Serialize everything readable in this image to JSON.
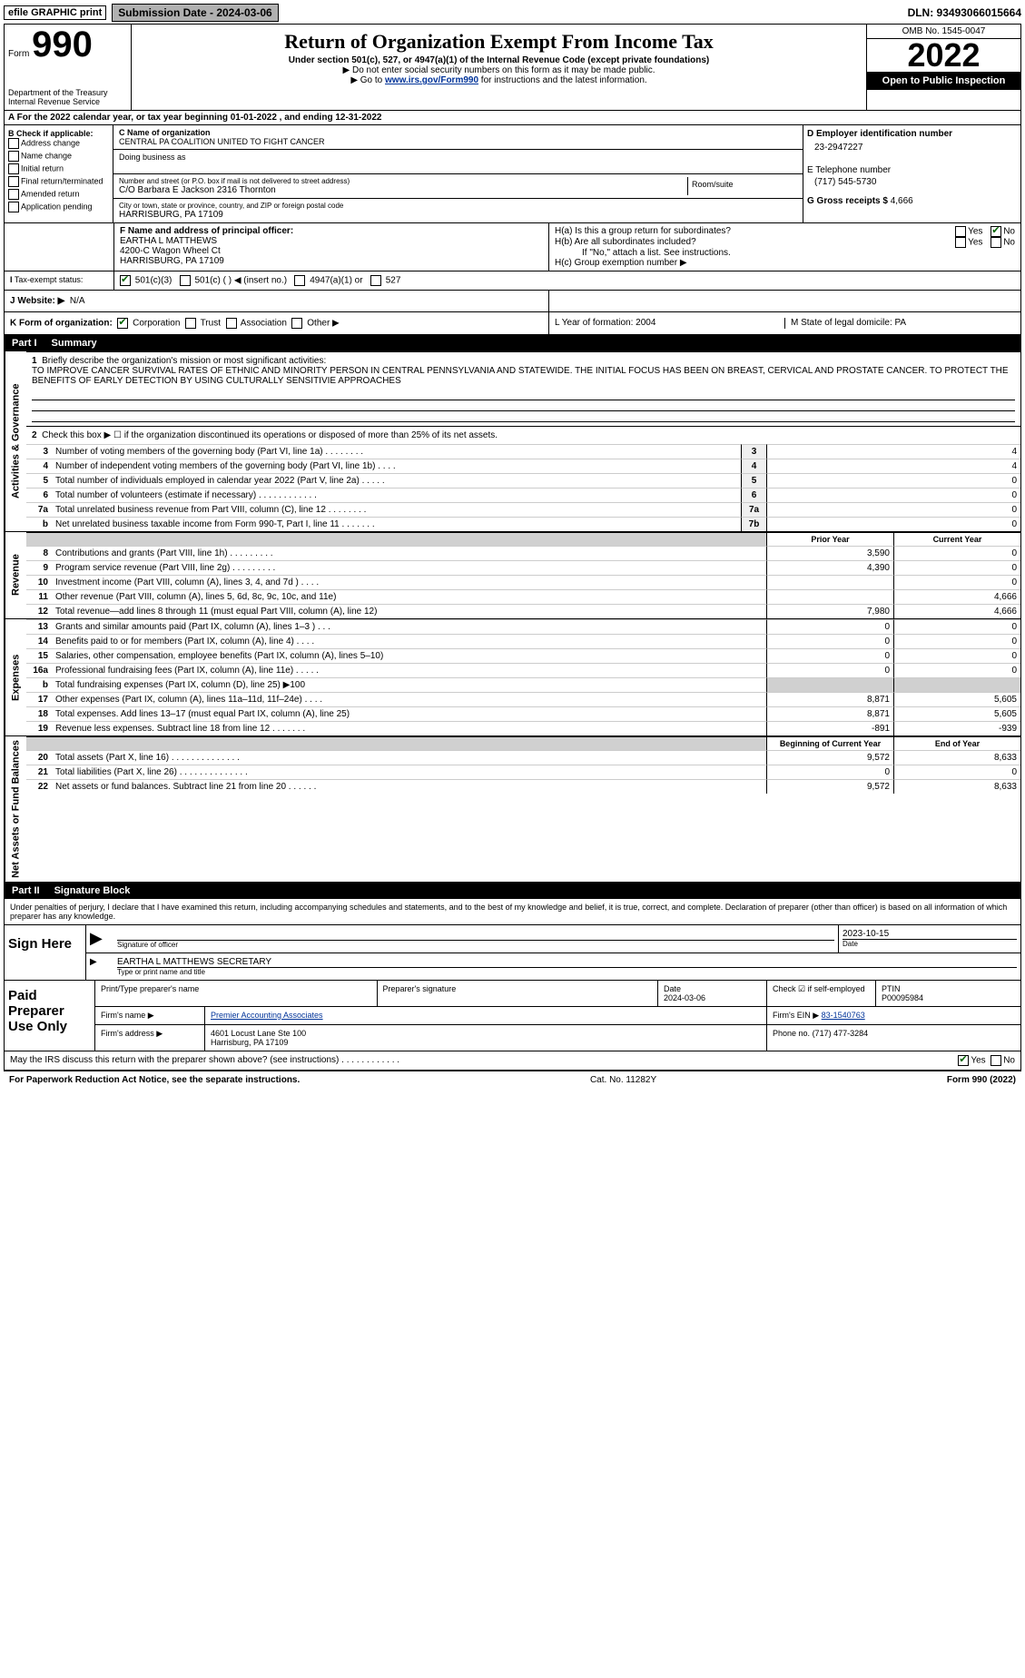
{
  "topbar": {
    "efile": "efile GRAPHIC print",
    "submission": "Submission Date - 2024-03-06",
    "dln": "DLN: 93493066015664"
  },
  "header": {
    "form_prefix": "Form",
    "form_number": "990",
    "dept": "Department of the Treasury Internal Revenue Service",
    "title": "Return of Organization Exempt From Income Tax",
    "sub1": "Under section 501(c), 527, or 4947(a)(1) of the Internal Revenue Code (except private foundations)",
    "sub2": "▶ Do not enter social security numbers on this form as it may be made public.",
    "sub3_pre": "▶ Go to ",
    "sub3_link": "www.irs.gov/Form990",
    "sub3_post": " for instructions and the latest information.",
    "omb": "OMB No. 1545-0047",
    "year": "2022",
    "open": "Open to Public Inspection"
  },
  "period": "For the 2022 calendar year, or tax year beginning 01-01-2022     , and ending 12-31-2022",
  "boxB": {
    "title": "B Check if applicable:",
    "items": [
      "Address change",
      "Name change",
      "Initial return",
      "Final return/terminated",
      "Amended return",
      "Application pending"
    ]
  },
  "boxC": {
    "label_name": "C Name of organization",
    "name": "CENTRAL PA COALITION UNITED TO FIGHT CANCER",
    "dba_label": "Doing business as",
    "street_label": "Number and street (or P.O. box if mail is not delivered to street address)",
    "street": "C/O Barbara E Jackson 2316 Thornton",
    "room_label": "Room/suite",
    "city_label": "City or town, state or province, country, and ZIP or foreign postal code",
    "city": "HARRISBURG, PA   17109"
  },
  "boxD": {
    "label": "D Employer identification number",
    "ein": "23-2947227"
  },
  "boxE": {
    "label": "E Telephone number",
    "phone": "(717) 545-5730"
  },
  "boxG": {
    "label": "G Gross receipts $",
    "val": "4,666"
  },
  "boxF": {
    "label": "F  Name and address of principal officer:",
    "name": "EARTHA L MATTHEWS",
    "addr1": "4200-C Wagon Wheel Ct",
    "addr2": "HARRISBURG, PA   17109"
  },
  "boxH": {
    "a": "H(a)  Is this a group return for subordinates?",
    "b": "H(b)  Are all subordinates included?",
    "b_note": "If \"No,\" attach a list. See instructions.",
    "c": "H(c)  Group exemption number ▶"
  },
  "taxExempt": {
    "label": "Tax-exempt status:",
    "opts": [
      "501(c)(3)",
      "501(c) (  ) ◀ (insert no.)",
      "4947(a)(1) or",
      "527"
    ]
  },
  "website": {
    "label": "J Website: ▶",
    "val": "N/A"
  },
  "formOrg": {
    "k": "K Form of organization:",
    "opts": [
      "Corporation",
      "Trust",
      "Association",
      "Other ▶"
    ],
    "l": "L Year of formation: 2004",
    "m": "M State of legal domicile: PA"
  },
  "part1": {
    "pt": "Part I",
    "title": "Summary"
  },
  "gov": {
    "label": "Activities & Governance",
    "l1": "Briefly describe the organization's mission or most significant activities:",
    "mission": "TO IMPROVE CANCER SURVIVAL RATES OF ETHNIC AND MINORITY PERSON IN CENTRAL PENNSYLVANIA AND STATEWIDE. THE INITIAL FOCUS HAS BEEN ON BREAST, CERVICAL AND PROSTATE CANCER. TO PROTECT THE BENEFITS OF EARLY DETECTION BY USING CULTURALLY SENSITIVIE APPROACHES",
    "l2": "Check this box ▶ ☐  if the organization discontinued its operations or disposed of more than 25% of its net assets.",
    "rows": [
      {
        "n": "3",
        "t": "Number of voting members of the governing body (Part VI, line 1a)   .    .    .    .    .    .    .    .",
        "c": "3",
        "v": "4"
      },
      {
        "n": "4",
        "t": "Number of independent voting members of the governing body (Part VI, line 1b)   .    .    .    .",
        "c": "4",
        "v": "4"
      },
      {
        "n": "5",
        "t": "Total number of individuals employed in calendar year 2022 (Part V, line 2a)   .    .    .    .    .",
        "c": "5",
        "v": "0"
      },
      {
        "n": "6",
        "t": "Total number of volunteers (estimate if necessary)   .    .    .    .    .    .    .    .    .    .    .    .",
        "c": "6",
        "v": "0"
      },
      {
        "n": "7a",
        "t": "Total unrelated business revenue from Part VIII, column (C), line 12   .    .    .    .    .    .    .    .",
        "c": "7a",
        "v": "0"
      },
      {
        "n": "b",
        "t": "Net unrelated business taxable income from Form 990-T, Part I, line 11   .    .    .    .    .    .    .",
        "c": "7b",
        "v": "0"
      }
    ]
  },
  "colhdr": {
    "prior": "Prior Year",
    "curr": "Current Year"
  },
  "rev": {
    "label": "Revenue",
    "rows": [
      {
        "n": "8",
        "t": "Contributions and grants (Part VIII, line 1h)   .    .    .    .    .    .    .    .    .",
        "p": "3,590",
        "c": "0"
      },
      {
        "n": "9",
        "t": "Program service revenue (Part VIII, line 2g)   .    .    .    .    .    .    .    .    .",
        "p": "4,390",
        "c": "0"
      },
      {
        "n": "10",
        "t": "Investment income (Part VIII, column (A), lines 3, 4, and 7d )   .    .    .    .",
        "p": "",
        "c": "0"
      },
      {
        "n": "11",
        "t": "Other revenue (Part VIII, column (A), lines 5, 6d, 8c, 9c, 10c, and 11e)",
        "p": "",
        "c": "4,666"
      },
      {
        "n": "12",
        "t": "Total revenue—add lines 8 through 11 (must equal Part VIII, column (A), line 12)",
        "p": "7,980",
        "c": "4,666"
      }
    ]
  },
  "exp": {
    "label": "Expenses",
    "rows": [
      {
        "n": "13",
        "t": "Grants and similar amounts paid (Part IX, column (A), lines 1–3 )   .    .    .",
        "p": "0",
        "c": "0"
      },
      {
        "n": "14",
        "t": "Benefits paid to or for members (Part IX, column (A), line 4)   .    .    .    .",
        "p": "0",
        "c": "0"
      },
      {
        "n": "15",
        "t": "Salaries, other compensation, employee benefits (Part IX, column (A), lines 5–10)",
        "p": "0",
        "c": "0"
      },
      {
        "n": "16a",
        "t": "Professional fundraising fees (Part IX, column (A), line 11e)   .    .    .    .    .",
        "p": "0",
        "c": "0"
      }
    ],
    "row_b": {
      "n": "b",
      "t": "Total fundraising expenses (Part IX, column (D), line 25) ▶100"
    },
    "rows2": [
      {
        "n": "17",
        "t": "Other expenses (Part IX, column (A), lines 11a–11d, 11f–24e)   .    .    .    .",
        "p": "8,871",
        "c": "5,605"
      },
      {
        "n": "18",
        "t": "Total expenses. Add lines 13–17 (must equal Part IX, column (A), line 25)",
        "p": "8,871",
        "c": "5,605"
      },
      {
        "n": "19",
        "t": "Revenue less expenses. Subtract line 18 from line 12   .    .    .    .    .    .    .",
        "p": "-891",
        "c": "-939"
      }
    ]
  },
  "net": {
    "label": "Net Assets or Fund Balances",
    "hdr": {
      "b": "Beginning of Current Year",
      "e": "End of Year"
    },
    "rows": [
      {
        "n": "20",
        "t": "Total assets (Part X, line 16)   .    .    .    .    .    .    .    .    .    .    .    .    .    .",
        "p": "9,572",
        "c": "8,633"
      },
      {
        "n": "21",
        "t": "Total liabilities (Part X, line 26)   .    .    .    .    .    .    .    .    .    .    .    .    .    .",
        "p": "0",
        "c": "0"
      },
      {
        "n": "22",
        "t": "Net assets or fund balances. Subtract line 21 from line 20   .    .    .    .    .    .",
        "p": "9,572",
        "c": "8,633"
      }
    ]
  },
  "part2": {
    "pt": "Part II",
    "title": "Signature Block"
  },
  "sigtext": "Under penalties of perjury, I declare that I have examined this return, including accompanying schedules and statements, and to the best of my knowledge and belief, it is true, correct, and complete. Declaration of preparer (other than officer) is based on all information of which preparer has any knowledge.",
  "sign": {
    "label": "Sign Here",
    "date": "2023-10-15",
    "sig_label": "Signature of officer",
    "date_label": "Date",
    "name": "EARTHA L MATTHEWS  SECRETARY",
    "name_label": "Type or print name and title"
  },
  "prep": {
    "label": "Paid Preparer Use Only",
    "h1": "Print/Type preparer's name",
    "h2": "Preparer's signature",
    "h3": "Date",
    "date": "2024-03-06",
    "h4": "Check ☑ if self-employed",
    "h5": "PTIN",
    "ptin": "P00095984",
    "firm_label": "Firm's name      ▶",
    "firm": "Premier Accounting Associates",
    "ein_label": "Firm's EIN ▶",
    "ein": "83-1540763",
    "addr_label": "Firm's address ▶",
    "addr1": "4601 Locust Lane Ste 100",
    "addr2": "Harrisburg, PA   17109",
    "phone_label": "Phone no.",
    "phone": "(717) 477-3284"
  },
  "discuss": {
    "q": "May the IRS discuss this return with the preparer shown above? (see instructions)   .    .    .    .    .    .    .    .    .    .    .    .",
    "yes": "Yes",
    "no": "No"
  },
  "footer": {
    "l": "For Paperwork Reduction Act Notice, see the separate instructions.",
    "m": "Cat. No. 11282Y",
    "r": "Form 990 (2022)"
  }
}
